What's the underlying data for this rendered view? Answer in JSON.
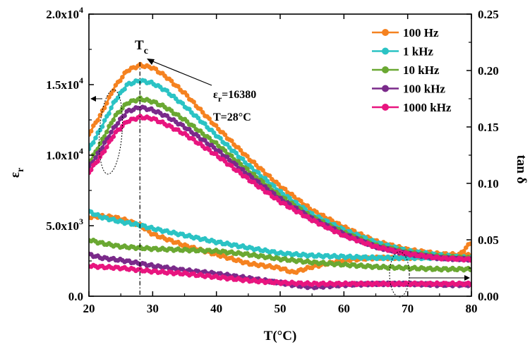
{
  "chart_data": {
    "type": "scatter",
    "x_label": "T(°C)",
    "y_left_label": "εr",
    "y_right_label": "tan δ",
    "x_range": [
      20,
      80
    ],
    "y_left_range": [
      0,
      20000
    ],
    "y_right_range": [
      0,
      0.25
    ],
    "x_ticks": [
      "20",
      "30",
      "40",
      "50",
      "60",
      "70",
      "80"
    ],
    "y_left_ticks": [
      {
        "base": "0.0",
        "exp": ""
      },
      {
        "base": "5.0x10",
        "exp": "3"
      },
      {
        "base": "1.0x10",
        "exp": "4"
      },
      {
        "base": "1.5x10",
        "exp": "4"
      },
      {
        "base": "2.0x10",
        "exp": "4"
      }
    ],
    "y_right_ticks": [
      "0.00",
      "0.05",
      "0.10",
      "0.15",
      "0.20",
      "0.25"
    ],
    "annotations": {
      "tc_main": "T",
      "tc_sub": "c",
      "eps_main": "ε",
      "eps_sub": "r",
      "eps_value": "=16380",
      "temp": "T=28°C"
    },
    "series": [
      {
        "name": "100 Hz",
        "color": "#f58220",
        "eps": [
          [
            20,
            11500
          ],
          [
            22,
            13000
          ],
          [
            24,
            14800
          ],
          [
            26,
            16000
          ],
          [
            28,
            16380
          ],
          [
            30,
            16200
          ],
          [
            32,
            15600
          ],
          [
            35,
            14400
          ],
          [
            40,
            12000
          ],
          [
            45,
            9800
          ],
          [
            50,
            7800
          ],
          [
            55,
            6100
          ],
          [
            60,
            4900
          ],
          [
            65,
            3900
          ],
          [
            70,
            3300
          ],
          [
            75,
            3000
          ],
          [
            80,
            2900
          ]
        ],
        "tan": [
          [
            20,
            0.07
          ],
          [
            22,
            0.071
          ],
          [
            24,
            0.07
          ],
          [
            26,
            0.067
          ],
          [
            28,
            0.063
          ],
          [
            30,
            0.055
          ],
          [
            35,
            0.045
          ],
          [
            40,
            0.037
          ],
          [
            45,
            0.029
          ],
          [
            50,
            0.025
          ],
          [
            52,
            0.021
          ],
          [
            55,
            0.026
          ],
          [
            60,
            0.032
          ],
          [
            65,
            0.034
          ],
          [
            70,
            0.034
          ],
          [
            75,
            0.036
          ],
          [
            78,
            0.036
          ],
          [
            80,
            0.048
          ]
        ]
      },
      {
        "name": "1 kHz",
        "color": "#2bc3c4",
        "eps": [
          [
            20,
            10400
          ],
          [
            22,
            12000
          ],
          [
            24,
            13800
          ],
          [
            26,
            15000
          ],
          [
            28,
            15300
          ],
          [
            30,
            15100
          ],
          [
            32,
            14600
          ],
          [
            35,
            13500
          ],
          [
            40,
            11400
          ],
          [
            45,
            9300
          ],
          [
            50,
            7400
          ],
          [
            55,
            5800
          ],
          [
            60,
            4700
          ],
          [
            65,
            3800
          ],
          [
            70,
            3200
          ],
          [
            75,
            2900
          ],
          [
            80,
            2700
          ]
        ],
        "tan": [
          [
            20,
            0.075
          ],
          [
            22,
            0.07
          ],
          [
            25,
            0.066
          ],
          [
            28,
            0.063
          ],
          [
            30,
            0.06
          ],
          [
            35,
            0.054
          ],
          [
            40,
            0.048
          ],
          [
            45,
            0.043
          ],
          [
            50,
            0.038
          ],
          [
            55,
            0.036
          ],
          [
            60,
            0.035
          ],
          [
            65,
            0.034
          ],
          [
            70,
            0.034
          ],
          [
            75,
            0.034
          ],
          [
            80,
            0.034
          ]
        ]
      },
      {
        "name": "10 kHz",
        "color": "#6aa832",
        "eps": [
          [
            20,
            9400
          ],
          [
            22,
            11000
          ],
          [
            24,
            12700
          ],
          [
            26,
            13700
          ],
          [
            28,
            14000
          ],
          [
            30,
            13800
          ],
          [
            32,
            13400
          ],
          [
            35,
            12500
          ],
          [
            40,
            10800
          ],
          [
            45,
            8900
          ],
          [
            50,
            7100
          ],
          [
            55,
            5600
          ],
          [
            60,
            4500
          ],
          [
            65,
            3600
          ],
          [
            70,
            3100
          ],
          [
            75,
            2800
          ],
          [
            80,
            2700
          ]
        ],
        "tan": [
          [
            20,
            0.05
          ],
          [
            22,
            0.047
          ],
          [
            25,
            0.044
          ],
          [
            30,
            0.042
          ],
          [
            35,
            0.041
          ],
          [
            40,
            0.04
          ],
          [
            45,
            0.037
          ],
          [
            50,
            0.033
          ],
          [
            55,
            0.03
          ],
          [
            60,
            0.028
          ],
          [
            65,
            0.026
          ],
          [
            70,
            0.025
          ],
          [
            75,
            0.024
          ],
          [
            80,
            0.024
          ]
        ]
      },
      {
        "name": "100 kHz",
        "color": "#7a2a8a",
        "eps": [
          [
            20,
            9100
          ],
          [
            22,
            10500
          ],
          [
            24,
            12000
          ],
          [
            26,
            13100
          ],
          [
            28,
            13400
          ],
          [
            30,
            13200
          ],
          [
            32,
            12800
          ],
          [
            35,
            12000
          ],
          [
            40,
            10400
          ],
          [
            45,
            8600
          ],
          [
            50,
            6900
          ],
          [
            55,
            5500
          ],
          [
            60,
            4400
          ],
          [
            65,
            3500
          ],
          [
            70,
            3000
          ],
          [
            75,
            2700
          ],
          [
            80,
            2600
          ]
        ],
        "tan": [
          [
            20,
            0.037
          ],
          [
            22,
            0.034
          ],
          [
            25,
            0.032
          ],
          [
            30,
            0.027
          ],
          [
            35,
            0.023
          ],
          [
            40,
            0.02
          ],
          [
            45,
            0.016
          ],
          [
            50,
            0.012
          ],
          [
            52,
            0.01
          ],
          [
            55,
            0.008
          ],
          [
            60,
            0.01
          ],
          [
            65,
            0.011
          ],
          [
            70,
            0.011
          ],
          [
            75,
            0.01
          ],
          [
            80,
            0.01
          ]
        ]
      },
      {
        "name": "1000 kHz",
        "color": "#e8157f",
        "eps": [
          [
            20,
            8800
          ],
          [
            22,
            10000
          ],
          [
            24,
            11500
          ],
          [
            26,
            12400
          ],
          [
            28,
            12700
          ],
          [
            30,
            12600
          ],
          [
            32,
            12200
          ],
          [
            35,
            11500
          ],
          [
            40,
            10000
          ],
          [
            45,
            8300
          ],
          [
            50,
            6700
          ],
          [
            55,
            5400
          ],
          [
            60,
            4300
          ],
          [
            65,
            3500
          ],
          [
            70,
            3000
          ],
          [
            75,
            2700
          ],
          [
            80,
            2600
          ]
        ],
        "tan": [
          [
            20,
            0.027
          ],
          [
            22,
            0.026
          ],
          [
            25,
            0.025
          ],
          [
            30,
            0.022
          ],
          [
            35,
            0.02
          ],
          [
            40,
            0.017
          ],
          [
            45,
            0.014
          ],
          [
            50,
            0.012
          ],
          [
            55,
            0.011
          ],
          [
            60,
            0.011
          ],
          [
            65,
            0.011
          ],
          [
            70,
            0.011
          ],
          [
            75,
            0.011
          ],
          [
            80,
            0.011
          ]
        ]
      }
    ]
  }
}
